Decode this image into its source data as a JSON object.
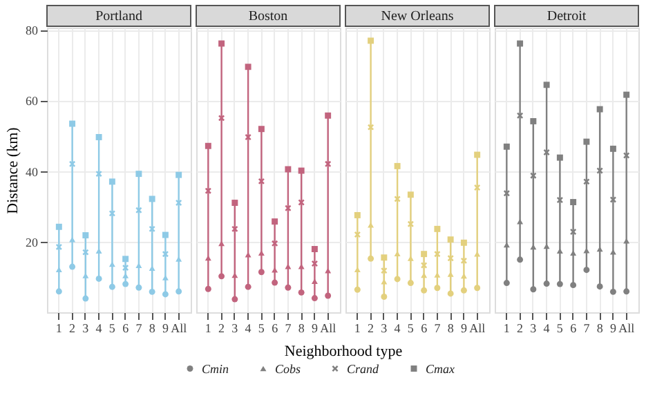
{
  "chart_data": [
    {
      "type": "scatter",
      "title": "Portland",
      "ylabel": "Distance (km)",
      "categories": [
        "1",
        "2",
        "3",
        "4",
        "5",
        "6",
        "7",
        "8",
        "9",
        "All"
      ],
      "ylim": [
        0,
        80.6
      ],
      "yticks": [
        20,
        40,
        60,
        80
      ],
      "grid": true,
      "series": [
        {
          "color": "#8ecae6",
          "marker": "circle",
          "values": [
            5.9,
            12.9,
            3.9,
            9.5,
            7.2,
            8.0,
            7.0,
            5.8,
            5.1,
            5.9
          ]
        },
        {
          "color": "#8ecae6",
          "marker": "triangle",
          "values": [
            12.1,
            20.6,
            10.4,
            17.4,
            13.6,
            10.4,
            13.3,
            12.5,
            9.8,
            15.1
          ]
        },
        {
          "color": "#8ecae6",
          "marker": "cross",
          "values": [
            18.5,
            42,
            17,
            39.2,
            28,
            12.6,
            28.9,
            23.6,
            16.5,
            31
          ]
        },
        {
          "color": "#8ecae6",
          "marker": "square",
          "values": [
            24.2,
            53.4,
            21.8,
            49.6,
            37,
            15.1,
            39.2,
            32.1,
            21.9,
            38.9
          ]
        }
      ]
    },
    {
      "type": "scatter",
      "title": "Boston",
      "xlabel": "Neighborhood  type",
      "tick_labels": "x",
      "categories": [
        "1",
        "2",
        "3",
        "4",
        "5",
        "6",
        "7",
        "8",
        "9",
        "All"
      ],
      "ylim": [
        0,
        80.6
      ],
      "yticks": [
        20,
        40,
        60,
        80
      ],
      "grid": true,
      "series": [
        {
          "color": "#c2647e",
          "marker": "circle",
          "values": [
            6.6,
            10.2,
            3.7,
            7.2,
            11.4,
            8.4,
            7,
            5.6,
            4.0,
            4.7
          ]
        },
        {
          "color": "#c2647e",
          "marker": "triangle",
          "values": [
            15.4,
            19.5,
            10.5,
            16.3,
            16.8,
            12,
            13,
            13,
            8.8,
            11.8
          ]
        },
        {
          "color": "#c2647e",
          "marker": "cross",
          "values": [
            34.4,
            55,
            23.6,
            49.6,
            37.1,
            19.5,
            29.5,
            31.1,
            13.8,
            42
          ]
        },
        {
          "color": "#c2647e",
          "marker": "square",
          "values": [
            47.1,
            76.1,
            31,
            69.5,
            51.9,
            25.7,
            40.5,
            40.1,
            17.9,
            55.7
          ]
        }
      ]
    },
    {
      "type": "scatter",
      "title": "New Orleans",
      "tick_labels": "x",
      "categories": [
        "1",
        "2",
        "3",
        "4",
        "5",
        "6",
        "7",
        "8",
        "9",
        "All"
      ],
      "ylim": [
        0,
        80.6
      ],
      "yticks": [
        20,
        40,
        60,
        80
      ],
      "grid": true,
      "series": [
        {
          "color": "#e3d07e",
          "marker": "circle",
          "values": [
            6.4,
            15.2,
            4.4,
            9.4,
            8.3,
            6.2,
            6.9,
            5.3,
            6.2,
            6.9
          ]
        },
        {
          "color": "#e3d07e",
          "marker": "triangle",
          "values": [
            12.1,
            24.7,
            8.7,
            16.6,
            15.3,
            10.5,
            10.6,
            10.8,
            10.3,
            16.5
          ]
        },
        {
          "color": "#e3d07e",
          "marker": "cross",
          "values": [
            22,
            52.4,
            11.8,
            32.1,
            25,
            13.3,
            16.5,
            15.3,
            14.6,
            35.3
          ]
        },
        {
          "color": "#e3d07e",
          "marker": "square",
          "values": [
            27.5,
            76.9,
            15.5,
            41.4,
            33.3,
            16.5,
            23.6,
            20.6,
            19.7,
            44.6
          ]
        }
      ]
    },
    {
      "type": "scatter",
      "title": "Detroit",
      "tick_labels": "x",
      "legend": "bottom",
      "categories": [
        "1",
        "2",
        "3",
        "4",
        "5",
        "6",
        "7",
        "8",
        "9",
        "All"
      ],
      "ylim": [
        0,
        80.6
      ],
      "yticks": [
        20,
        40,
        60,
        80
      ],
      "grid": true,
      "series": [
        {
          "name": "Cmin",
          "color": "#808080",
          "marker": "circle",
          "values": [
            8.3,
            14.9,
            6.5,
            8.1,
            8.0,
            7.7,
            12.0,
            7.3,
            5.8,
            5.9
          ]
        },
        {
          "name": "Cobs",
          "color": "#808080",
          "marker": "triangle",
          "values": [
            19.1,
            25.7,
            18.5,
            18.7,
            17.4,
            16.8,
            17.5,
            17.9,
            17.1,
            20.2
          ]
        },
        {
          "name": "Crand",
          "color": "#808080",
          "marker": "cross",
          "values": [
            33.7,
            55.7,
            38.7,
            45.3,
            31.8,
            22.8,
            37,
            40.1,
            31.9,
            44.4
          ]
        },
        {
          "name": "Cmax",
          "color": "#808080",
          "marker": "square",
          "values": [
            46.9,
            76.1,
            54.1,
            64.4,
            43.8,
            31.2,
            48.3,
            57.5,
            46.3,
            61.6
          ]
        }
      ]
    }
  ]
}
